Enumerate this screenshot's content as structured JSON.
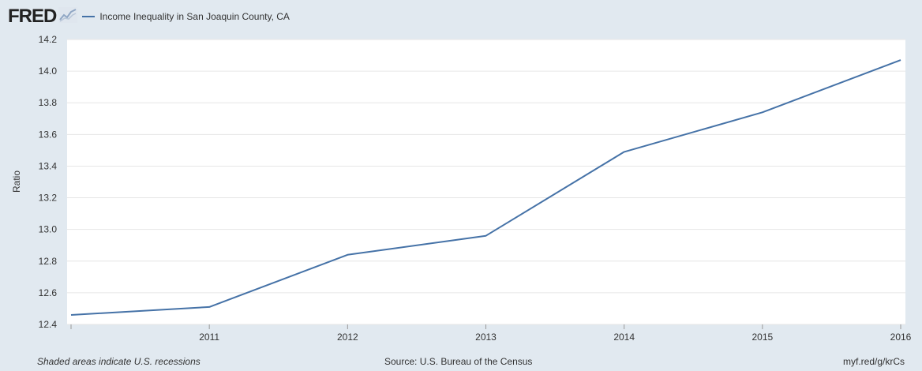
{
  "header": {
    "logo_text": "FRED",
    "logo_icon": "line-chart-icon",
    "legend_label": "Income Inequality in San Joaquin County, CA"
  },
  "footer": {
    "recession_note": "Shaded areas indicate U.S. recessions",
    "source": "Source: U.S. Bureau of the Census",
    "short_url": "myf.red/g/krCs"
  },
  "colors": {
    "background": "#e1e9f0",
    "plot_background": "#ffffff",
    "series": "#4572a7"
  },
  "chart_data": {
    "type": "line",
    "ylabel": "Ratio",
    "xlabel": "",
    "ylim": [
      12.4,
      14.2
    ],
    "yticks": [
      "12.4",
      "12.6",
      "12.8",
      "13.0",
      "13.2",
      "13.4",
      "13.6",
      "13.8",
      "14.0",
      "14.2"
    ],
    "xticks": [
      "2011",
      "2012",
      "2013",
      "2014",
      "2015",
      "2016"
    ],
    "xlim": [
      2010,
      2016
    ],
    "grid": true,
    "series": [
      {
        "name": "Income Inequality in San Joaquin County, CA",
        "x": [
          2010,
          2011,
          2012,
          2013,
          2014,
          2015,
          2016
        ],
        "values": [
          12.46,
          12.51,
          12.84,
          12.96,
          13.49,
          13.74,
          14.07
        ]
      }
    ]
  }
}
